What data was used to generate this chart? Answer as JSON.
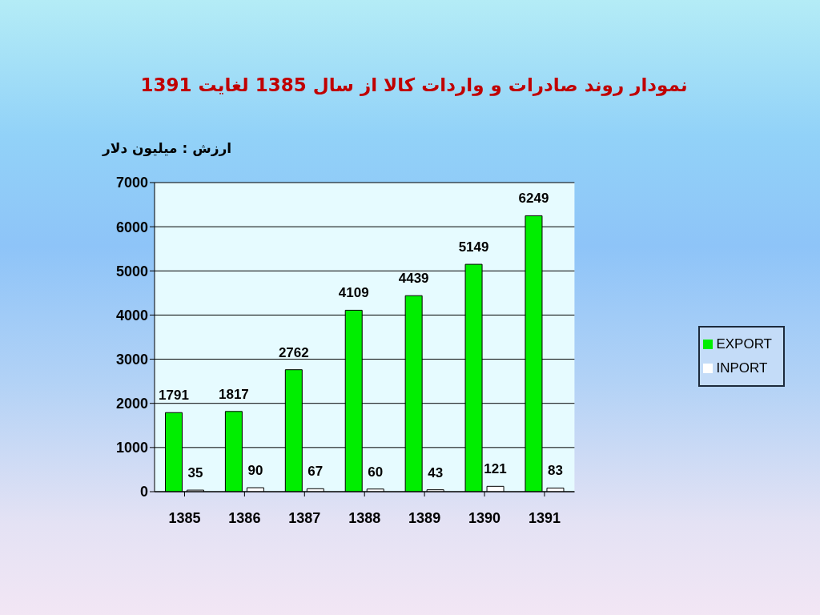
{
  "chart_data": {
    "type": "bar",
    "title": "نمودار روند صادرات و واردات کالا  از سال 1385 لغایت 1391",
    "ylabel": "ارزش : میلیون دلار",
    "categories": [
      "1385",
      "1386",
      "1387",
      "1388",
      "1389",
      "1390",
      "1391"
    ],
    "series": [
      {
        "name": "EXPORT",
        "color": "#00ee00",
        "values": [
          1791,
          1817,
          2762,
          4109,
          4439,
          5149,
          6249
        ]
      },
      {
        "name": "INPORT",
        "color": "#ffffff",
        "values": [
          35,
          90,
          67,
          60,
          43,
          121,
          83
        ]
      }
    ],
    "ylim": [
      0,
      7000
    ],
    "yticks": [
      0,
      1000,
      2000,
      3000,
      4000,
      5000,
      6000,
      7000
    ],
    "grid": "y",
    "legend": "right",
    "data_labels": true
  }
}
